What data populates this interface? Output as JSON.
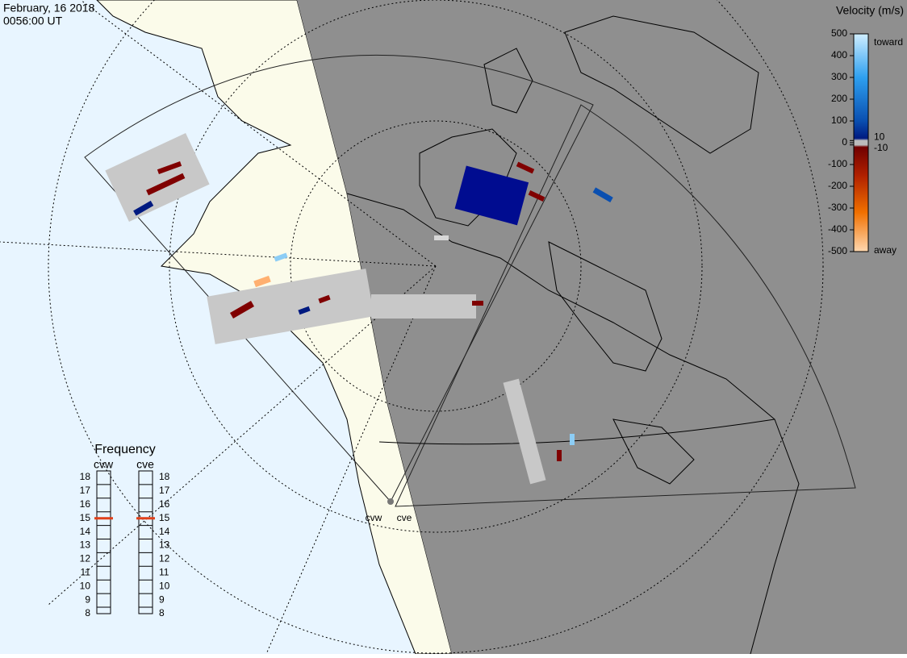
{
  "header": {
    "date": "February, 16 2018",
    "time": "0056:00 UT"
  },
  "velocity_scale": {
    "title": "Velocity (m/s)",
    "ticks": [
      500,
      400,
      300,
      200,
      100,
      10,
      0,
      -10,
      -100,
      -200,
      -300,
      -400,
      -500
    ],
    "toward": "toward",
    "away": "away"
  },
  "frequency": {
    "title": "Frequency",
    "ticks": [
      18,
      17,
      16,
      15,
      14,
      13,
      12,
      11,
      10,
      9,
      8
    ],
    "radars": [
      {
        "name": "cvw",
        "value": 15
      },
      {
        "name": "cve",
        "value": 15
      }
    ]
  },
  "radar_labels": [
    "cvw",
    "cve"
  ]
}
